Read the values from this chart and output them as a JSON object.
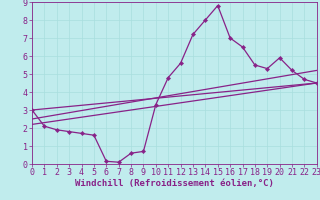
{
  "xlabel": "Windchill (Refroidissement éolien,°C)",
  "bg_color": "#c0eced",
  "line_color": "#882288",
  "xlim": [
    0,
    23
  ],
  "ylim": [
    0,
    9
  ],
  "xticks": [
    0,
    1,
    2,
    3,
    4,
    5,
    6,
    7,
    8,
    9,
    10,
    11,
    12,
    13,
    14,
    15,
    16,
    17,
    18,
    19,
    20,
    21,
    22,
    23
  ],
  "yticks": [
    0,
    1,
    2,
    3,
    4,
    5,
    6,
    7,
    8,
    9
  ],
  "line1_x": [
    0,
    1,
    2,
    3,
    4,
    5,
    6,
    7,
    8,
    9,
    10,
    11,
    12,
    13,
    14,
    15,
    16,
    17,
    18,
    19,
    20,
    21,
    22,
    23
  ],
  "line1_y": [
    3.0,
    2.1,
    1.9,
    1.8,
    1.7,
    1.6,
    0.15,
    0.1,
    0.6,
    0.7,
    3.3,
    4.8,
    5.6,
    7.2,
    8.0,
    8.8,
    7.0,
    6.5,
    5.5,
    5.3,
    5.9,
    5.2,
    4.7,
    4.5
  ],
  "line2_x": [
    0,
    23
  ],
  "line2_y": [
    2.2,
    4.5
  ],
  "line3_x": [
    0,
    23
  ],
  "line3_y": [
    2.5,
    5.2
  ],
  "line4_x": [
    0,
    23
  ],
  "line4_y": [
    3.0,
    4.5
  ],
  "grid_color": "#a8dede",
  "font_color": "#882288",
  "xlabel_fontsize": 6.5,
  "tick_fontsize": 6.0,
  "line_width": 0.9,
  "marker": "D",
  "marker_size": 2.2
}
